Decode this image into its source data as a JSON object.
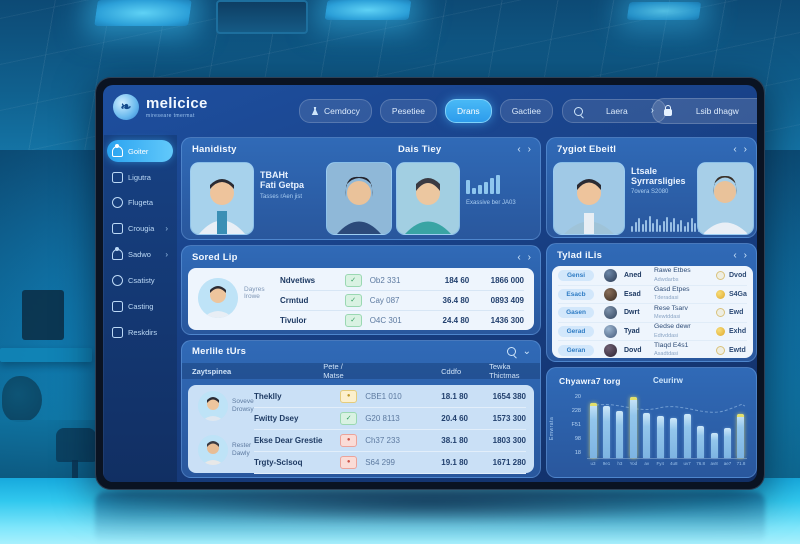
{
  "brand": {
    "name": "melicice",
    "tagline": "mireseare tmermat"
  },
  "nav": {
    "items": [
      {
        "label": "Cemdocy"
      },
      {
        "label": "Pesetiee"
      },
      {
        "label": "Drans"
      },
      {
        "label": "Gactiee"
      }
    ],
    "search_label": "Laera",
    "action_label": "Lsib dhagw"
  },
  "sidebar": {
    "items": [
      {
        "label": "Goiter"
      },
      {
        "label": "Ligutra"
      },
      {
        "label": "Flugeta"
      },
      {
        "label": "Crougia"
      },
      {
        "label": "Sadwo"
      },
      {
        "label": "Csatisty"
      },
      {
        "label": "Casting"
      },
      {
        "label": "Reskdirs"
      }
    ]
  },
  "schedule": {
    "title": "Hanidisty",
    "subtitle": "Dais Tiey",
    "doctor_name_1": "TBAHt",
    "doctor_name_2": "Fati Getpa",
    "doctor_subtitle": "Tasses rAen jist",
    "stat_label": "Exassive ber JA03"
  },
  "sored_lip": {
    "title": "Sored Lip",
    "avatar_caption_1": "Dayres",
    "avatar_caption_2": "Irowe",
    "rows": [
      {
        "name": "Ndvetiws",
        "badge": "green",
        "code": "Ob2 331",
        "hours": "184 60",
        "amount": "1866 000"
      },
      {
        "name": "Crmtud",
        "badge": "green",
        "code": "Cay 087",
        "hours": "36.4 80",
        "amount": "0893 409"
      },
      {
        "name": "Tivulor",
        "badge": "green",
        "code": "O4C 301",
        "hours": "24.4 80",
        "amount": "1436 300"
      }
    ]
  },
  "melile": {
    "title": "Merlile tUrs",
    "col_1": "Zaytspinea",
    "col_2": "Pete / Matse",
    "col_3": "Cddfo",
    "col_4": "Tewka Thictmas",
    "group_1_caption_1": "Soveve",
    "group_1_caption_2": "Drowsy",
    "group_2_caption_1": "Rester",
    "group_2_caption_2": "Dawly",
    "rows": [
      {
        "name": "Theklly",
        "badge": "yellow",
        "code": "CBE1 010",
        "col3": "18.1 80",
        "col4": "1654 380"
      },
      {
        "name": "Fwitty Dsey",
        "badge": "green",
        "code": "G20 8113",
        "col3": "20.4 60",
        "col4": "1573 300"
      },
      {
        "name": "Ekse Dear Grestie",
        "badge": "red",
        "code": "Ch37 233",
        "col3": "38.1 80",
        "col4": "1803 300"
      },
      {
        "name": "Trgty-Sclsoq",
        "badge": "red",
        "code": "S64 299",
        "col3": "19.1 80",
        "col4": "1671 280"
      }
    ]
  },
  "right_top": {
    "title": "7ygiot Ebeitl",
    "line_1": "Ltsale",
    "line_2": "Syrrarsligies",
    "subtitle": "7overa S2080"
  },
  "trlad": {
    "title": "Tylad iLis",
    "rows": [
      {
        "pill": "Gensi",
        "name": "Aned",
        "desc": "Rawe Etbes",
        "sub": "Adwdarbs",
        "coin": "pale",
        "value": "Dvod"
      },
      {
        "pill": "Esacb",
        "name": "Esad",
        "desc": "Gasd Etpes",
        "sub": "Tderadasi",
        "coin": "gold",
        "value": "S4Ga"
      },
      {
        "pill": "Gasen",
        "name": "Dwrt",
        "desc": "Rese Tsarv",
        "sub": "Mewtddasi",
        "coin": "pale",
        "value": "Ewd"
      },
      {
        "pill": "Gerad",
        "name": "Tyad",
        "desc": "Gedse dewr",
        "sub": "Edtvddasi",
        "coin": "gold",
        "value": "Exhd"
      },
      {
        "pill": "Geran",
        "name": "Dovd",
        "desc": "Tlaqd E4s1",
        "sub": "Asadtdasi",
        "coin": "pale",
        "value": "Ewtd"
      }
    ]
  },
  "chart_data": {
    "type": "bar",
    "title": "Chyawra7 torg",
    "legend": "Ceurirw",
    "ylabel": "Emwrata",
    "categories": [
      "u3",
      "9e1",
      "h3",
      "Yod",
      "av",
      "Fy4",
      "4u8",
      "uv7",
      "76.8",
      "av8",
      "ae7",
      "71.8"
    ],
    "values": [
      210,
      196,
      178,
      232,
      172,
      160,
      150,
      168,
      120,
      96,
      113,
      167
    ],
    "highlight_indices": [
      0,
      3,
      11
    ],
    "ytick_labels": [
      "20",
      "228",
      "F51",
      "98",
      "18"
    ],
    "ylim": [
      0,
      250
    ],
    "grid": false,
    "legend_position": "top",
    "line_overlay": true
  },
  "colors": {
    "accent": "#38aef2",
    "badge_green": "#2e9e5b",
    "badge_yellow": "#c09a2a",
    "badge_red": "#cc5248",
    "coin_gold": "#e0a92c",
    "panel_blue": "#2d63ae",
    "floor_cyan": "#31c8ee"
  }
}
